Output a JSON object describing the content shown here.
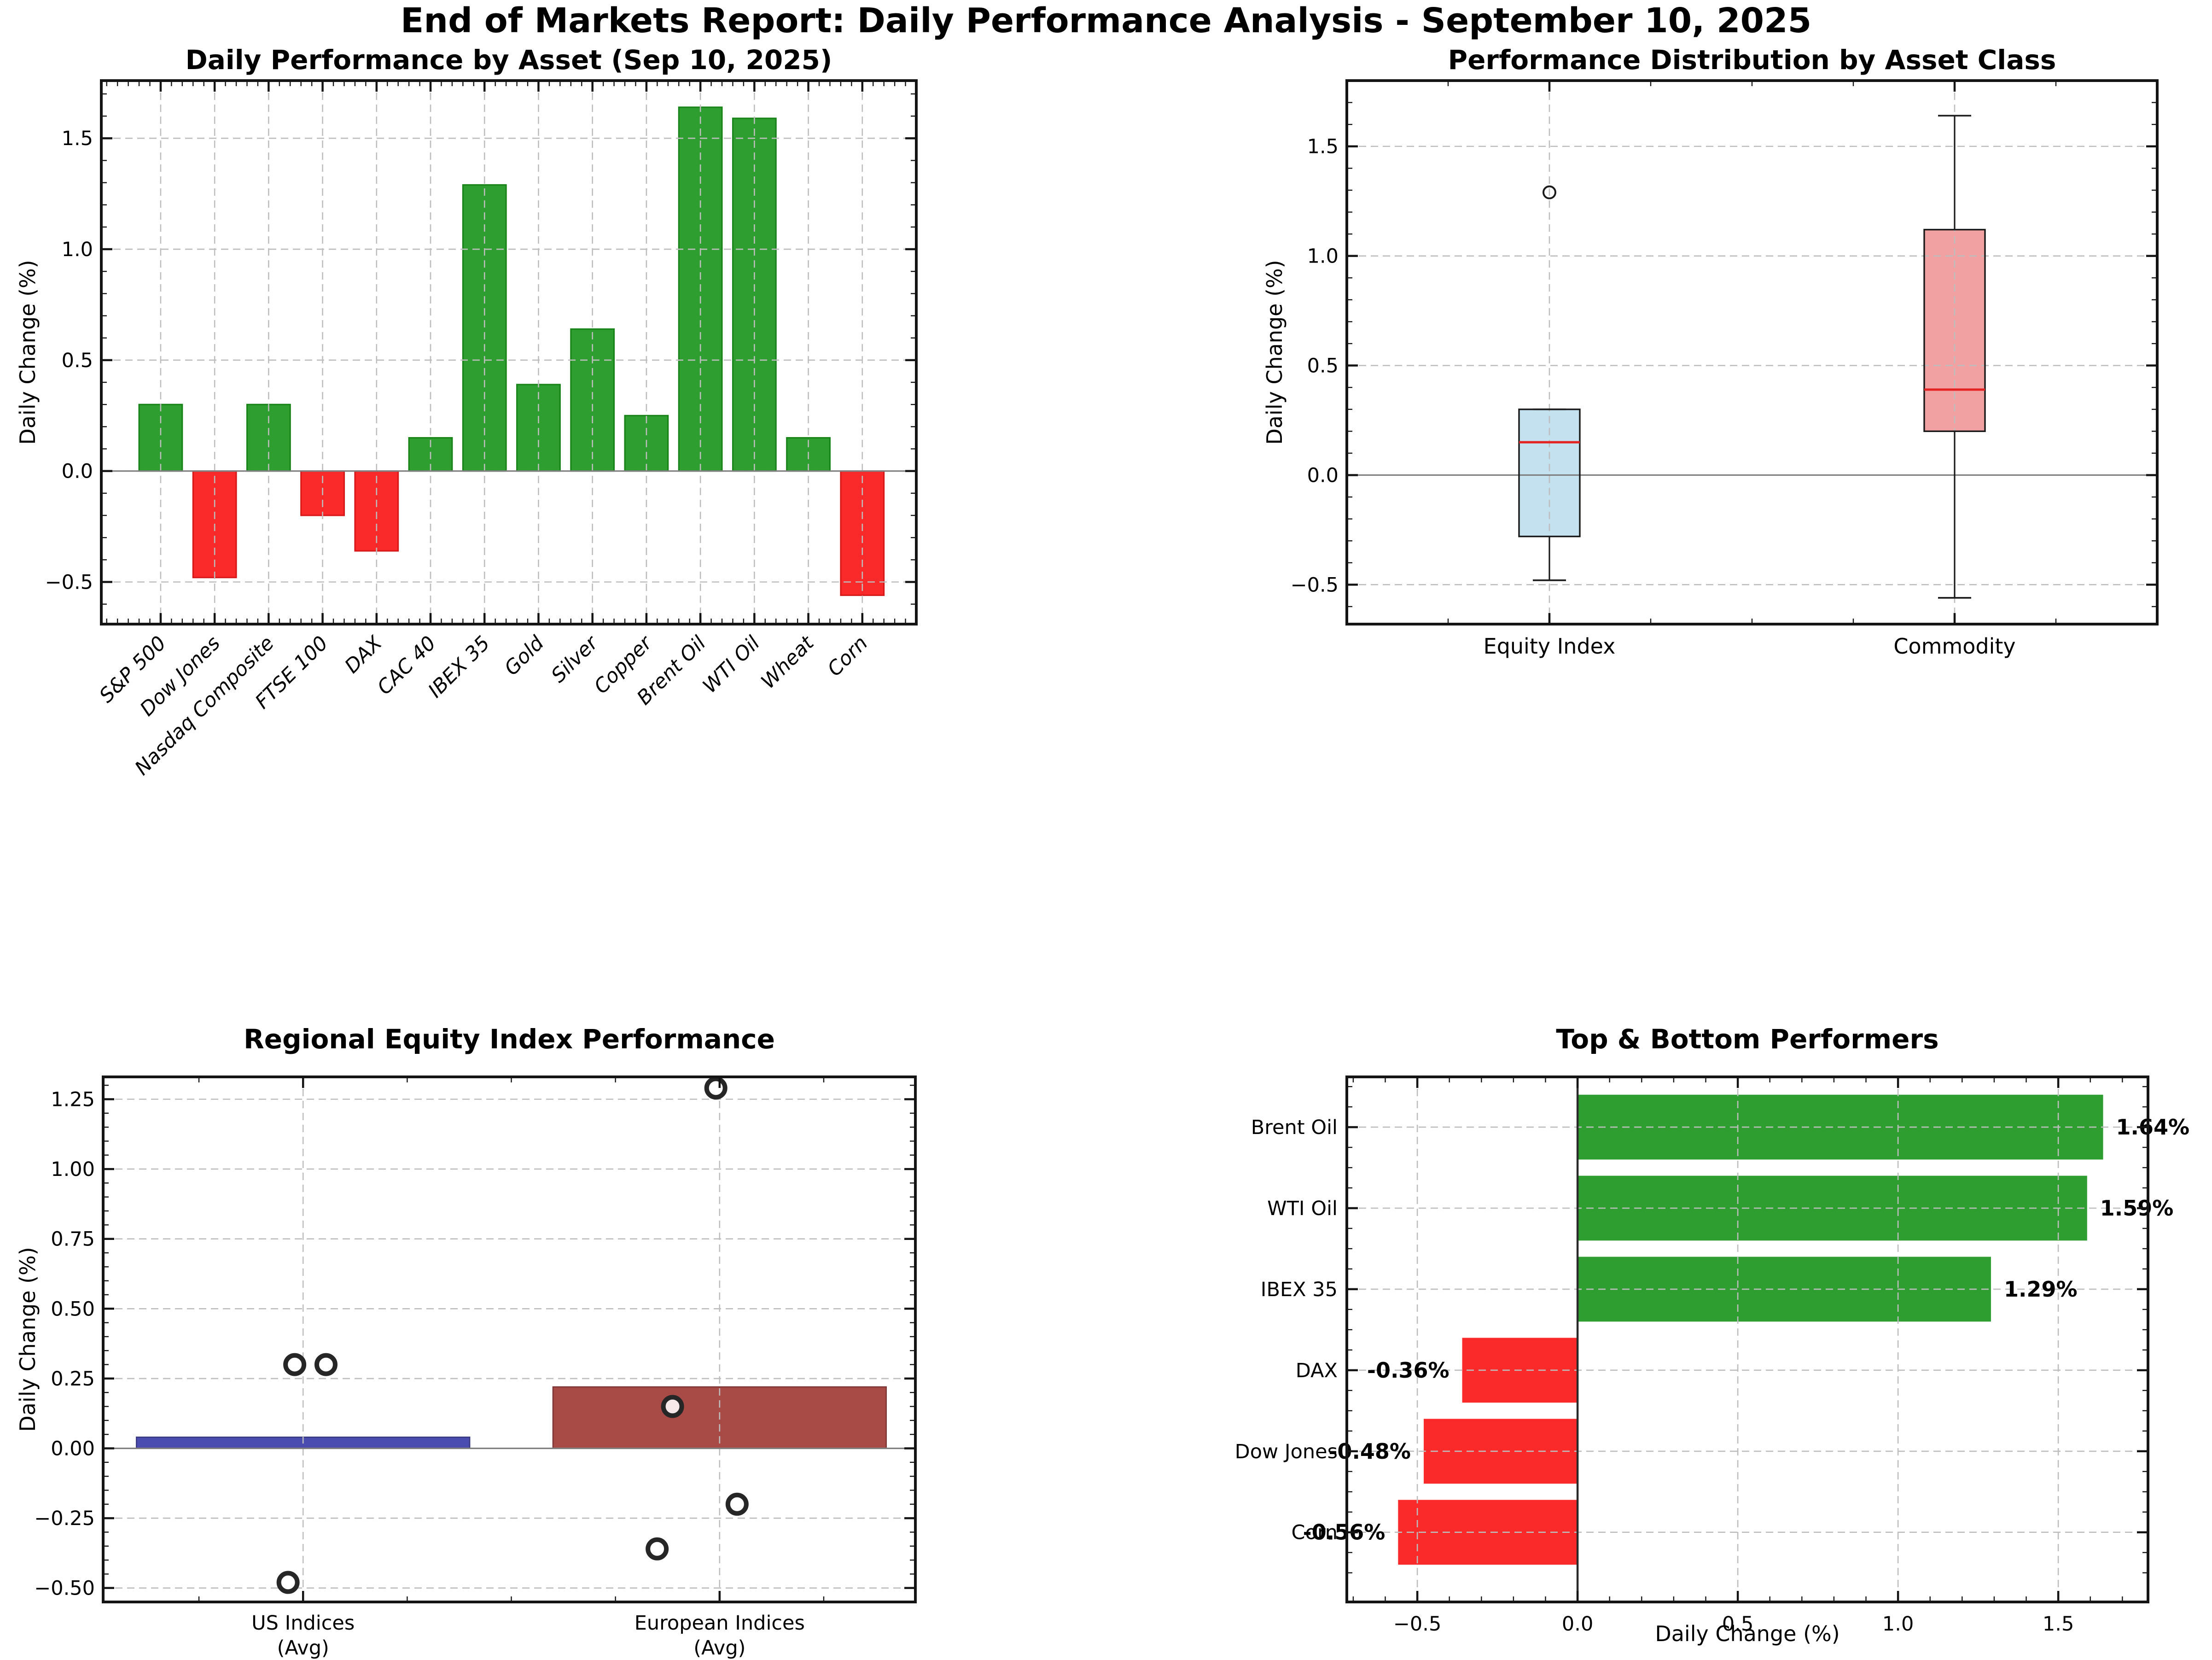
{
  "figure": {
    "suptitle": "End of Markets Report: Daily Performance Analysis - September 10, 2025",
    "background": "#ffffff"
  },
  "colors": {
    "positive": "#2f9e31",
    "positive_edge": "#178217",
    "negative": "#fb2a2a",
    "negative_edge": "#d61717",
    "us_bar": "#4a4caf",
    "us_bar_edge": "#37387f",
    "eu_bar": "#a84b47",
    "eu_bar_edge": "#7d3633",
    "box_equity": "#c4e1ef",
    "box_commodity": "#f2a1a3",
    "box_edge": "#1a1a1a",
    "median": "#e42222",
    "grid": "#bdbdbd",
    "zero_line": "#7f7f7f",
    "zero_line_dark": "#2a2a2a",
    "spine": "#141414",
    "marker_edge": "#262626",
    "marker_fill": "#ffffff",
    "marker_fill_on_bar": "#f6e7e9",
    "text": "#000000"
  },
  "chart_data": [
    {
      "type": "bar",
      "title": "Daily Performance by Asset (Sep 10, 2025)",
      "ylabel": "Daily Change (%)",
      "categories": [
        "S&P 500",
        "Dow Jones",
        "Nasdaq Composite",
        "FTSE 100",
        "DAX",
        "CAC 40",
        "IBEX 35",
        "Gold",
        "Silver",
        "Copper",
        "Brent Oil",
        "WTI Oil",
        "Wheat",
        "Corn"
      ],
      "values": [
        0.3,
        -0.48,
        0.3,
        -0.2,
        -0.36,
        0.15,
        1.29,
        0.39,
        0.64,
        0.25,
        1.64,
        1.59,
        0.15,
        -0.56
      ],
      "xlim": [
        -1.1,
        14.0
      ],
      "ylim": [
        -0.69,
        1.76
      ],
      "ytick_vals": [
        -0.5,
        0,
        0.5,
        1,
        1.5
      ],
      "ytick_labels": [
        "−0.5",
        "0.0",
        "0.5",
        "1.0",
        "1.5"
      ],
      "y_minor_step": 0.1,
      "x_minor_step": 0.2,
      "bar_width": 0.8,
      "grid": "both",
      "zero_line": true
    },
    {
      "type": "boxplot",
      "title": "Performance Distribution by Asset Class",
      "ylabel": "Daily Change (%)",
      "categories": [
        "Equity Index",
        "Commodity"
      ],
      "positions": [
        1,
        2
      ],
      "xlim": [
        0.5,
        2.5
      ],
      "ylim": [
        -0.68,
        1.8
      ],
      "ytick_vals": [
        -0.5,
        0,
        0.5,
        1,
        1.5
      ],
      "ytick_labels": [
        "−0.5",
        "0.0",
        "0.5",
        "1.0",
        "1.5"
      ],
      "y_minor_step": 0.1,
      "x_minor_step": 0.25,
      "boxes": [
        {
          "label": "Equity Index",
          "q1": -0.28,
          "median": 0.15,
          "q3": 0.3,
          "whisker_low": -0.48,
          "whisker_high": 0.3,
          "outliers": [
            1.29
          ],
          "fill_key": "box_equity"
        },
        {
          "label": "Commodity",
          "q1": 0.2,
          "median": 0.39,
          "q3": 1.12,
          "whisker_low": -0.56,
          "whisker_high": 1.64,
          "outliers": [],
          "fill_key": "box_commodity"
        }
      ],
      "zero_line": true
    },
    {
      "type": "bar-scatter",
      "title": "Regional Equity Index Performance",
      "ylabel": "Daily Change (%)",
      "categories": [
        [
          "US Indices",
          "(Avg)"
        ],
        [
          "European Indices",
          "(Avg)"
        ]
      ],
      "bar_values": [
        0.04,
        0.22
      ],
      "bar_color_keys": [
        "us_bar",
        "eu_bar"
      ],
      "bar_edge_keys": [
        "us_bar_edge",
        "eu_bar_edge"
      ],
      "points": [
        {
          "x": -0.02,
          "y": 0.3
        },
        {
          "x": 0.055,
          "y": 0.3
        },
        {
          "x": -0.036,
          "y": -0.48
        },
        {
          "x": 0.991,
          "y": 1.29
        },
        {
          "x": 0.887,
          "y": 0.15,
          "on_bar": true
        },
        {
          "x": 1.042,
          "y": -0.2
        },
        {
          "x": 0.85,
          "y": -0.36
        }
      ],
      "xlim": [
        -0.48,
        1.47
      ],
      "ylim": [
        -0.55,
        1.33
      ],
      "ytick_vals": [
        -0.5,
        -0.25,
        0,
        0.25,
        0.5,
        0.75,
        1,
        1.25
      ],
      "ytick_labels": [
        "−0.50",
        "−0.25",
        "0.00",
        "0.25",
        "0.50",
        "0.75",
        "1.00",
        "1.25"
      ],
      "y_minor_step": 0.05,
      "x_minor_step": 0.25,
      "bar_width": 0.8,
      "zero_line": true
    },
    {
      "type": "hbar",
      "title": "Top & Bottom Performers",
      "xlabel": "Daily Change (%)",
      "categories": [
        "Brent Oil",
        "WTI Oil",
        "IBEX 35",
        "DAX",
        "Dow Jones",
        "Corn"
      ],
      "values": [
        1.64,
        1.59,
        1.29,
        -0.36,
        -0.48,
        -0.56
      ],
      "value_labels": [
        "1.64%",
        "1.59%",
        "1.29%",
        "-0.36%",
        "-0.48%",
        "-0.56%"
      ],
      "xlim": [
        -0.72,
        1.78
      ],
      "xtick_vals": [
        -0.5,
        0,
        0.5,
        1,
        1.5
      ],
      "xtick_labels": [
        "−0.5",
        "0.0",
        "0.5",
        "1.0",
        "1.5"
      ],
      "x_minor_step": 0.1,
      "y_minor_step": 0.25,
      "bar_height": 0.8,
      "zero_line": true
    }
  ]
}
